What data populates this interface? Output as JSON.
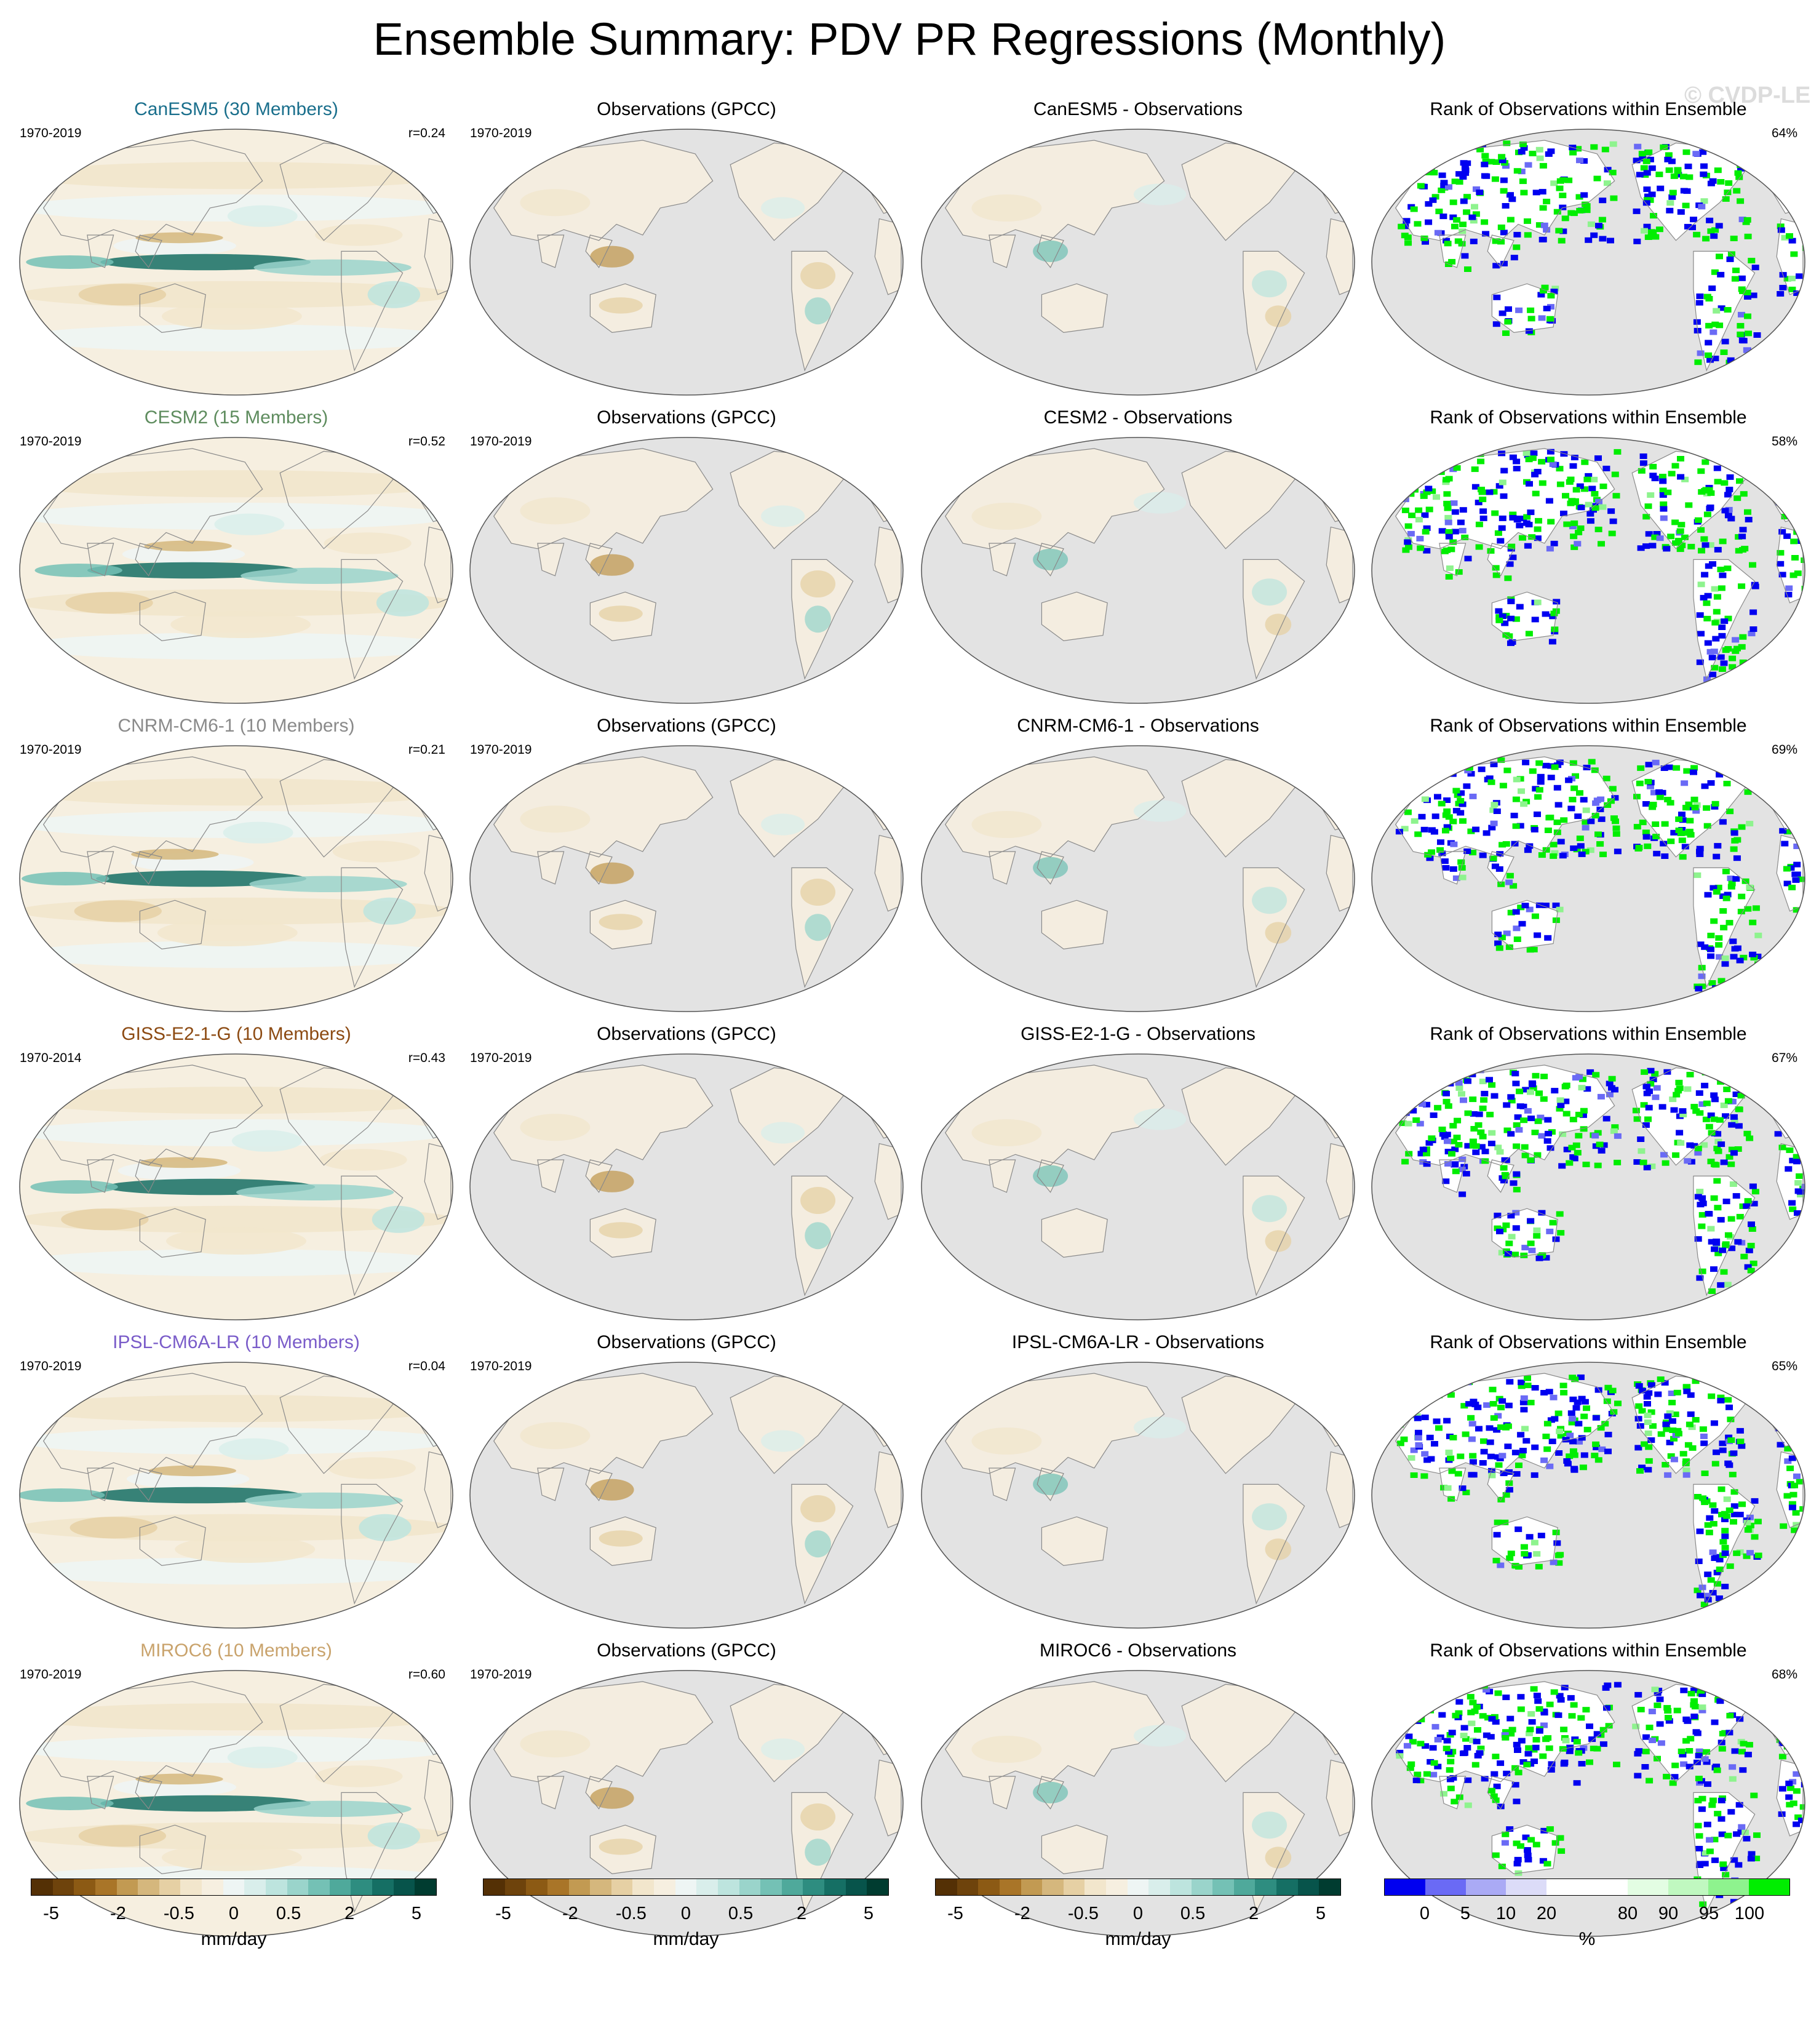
{
  "title": "Ensemble Summary: PDV PR Regressions (Monthly)",
  "watermark": "© CVDP-LE",
  "colors": {
    "ocean_gray": "#e3e3e3",
    "coast": "#8a8a8a",
    "rank_low": "#0000f0",
    "rank_high": "#00ee00",
    "model_title_colors": [
      "#1a6f8c",
      "#5e8c5e",
      "#8a8a8a",
      "#8c4a12",
      "#7a5cc9",
      "#c9a36c"
    ]
  },
  "rows": [
    {
      "model_title": "CanESM5 (30 Members)",
      "model_years": "1970-2019",
      "r": "r=0.24",
      "obs_title": "Observations (GPCC)",
      "obs_years": "1970-2019",
      "diff_title": "CanESM5 - Observations",
      "rank_title": "Rank of Observations within Ensemble",
      "rank_pct": "64%"
    },
    {
      "model_title": "CESM2 (15 Members)",
      "model_years": "1970-2019",
      "r": "r=0.52",
      "obs_title": "Observations (GPCC)",
      "obs_years": "1970-2019",
      "diff_title": "CESM2 - Observations",
      "rank_title": "Rank of Observations within Ensemble",
      "rank_pct": "58%"
    },
    {
      "model_title": "CNRM-CM6-1 (10 Members)",
      "model_years": "1970-2019",
      "r": "r=0.21",
      "obs_title": "Observations (GPCC)",
      "obs_years": "1970-2019",
      "diff_title": "CNRM-CM6-1 - Observations",
      "rank_title": "Rank of Observations within Ensemble",
      "rank_pct": "69%"
    },
    {
      "model_title": "GISS-E2-1-G (10 Members)",
      "model_years": "1970-2014",
      "r": "r=0.43",
      "obs_title": "Observations (GPCC)",
      "obs_years": "1970-2019",
      "diff_title": "GISS-E2-1-G - Observations",
      "rank_title": "Rank of Observations within Ensemble",
      "rank_pct": "67%"
    },
    {
      "model_title": "IPSL-CM6A-LR (10 Members)",
      "model_years": "1970-2019",
      "r": "r=0.04",
      "obs_title": "Observations (GPCC)",
      "obs_years": "1970-2019",
      "diff_title": "IPSL-CM6A-LR - Observations",
      "rank_title": "Rank of Observations within Ensemble",
      "rank_pct": "65%"
    },
    {
      "model_title": "MIROC6 (10 Members)",
      "model_years": "1970-2019",
      "r": "r=0.60",
      "obs_title": "Observations (GPCC)",
      "obs_years": "1970-2019",
      "diff_title": "MIROC6 - Observations",
      "rank_title": "Rank of Observations within Ensemble",
      "rank_pct": "68%"
    }
  ],
  "colorbars": {
    "pr": {
      "colors": [
        "#543005",
        "#6e430c",
        "#8c5a14",
        "#a97528",
        "#c29a52",
        "#d5b77d",
        "#e6d0a4",
        "#f2e6cc",
        "#f6efe0",
        "#eef5f4",
        "#d9eeeb",
        "#bde4de",
        "#9ad4cb",
        "#74c1b5",
        "#4fa99b",
        "#2e8d80",
        "#156f64",
        "#07544b",
        "#003c30"
      ],
      "ticks": [
        "-5",
        "-2",
        "-0.5",
        "0",
        "0.5",
        "2",
        "5"
      ],
      "unit": "mm/day"
    },
    "rank": {
      "colors": [
        "#0000f0",
        "#6a6af5",
        "#aaaaf5",
        "#dcdcf8",
        "#ffffff",
        "#ffffff",
        "#e3fde3",
        "#c0f8c0",
        "#8ef38e",
        "#00ee00"
      ],
      "ticks": [
        "0",
        "5",
        "10",
        "20",
        "80",
        "90",
        "95",
        "100"
      ],
      "unit": "%"
    }
  }
}
